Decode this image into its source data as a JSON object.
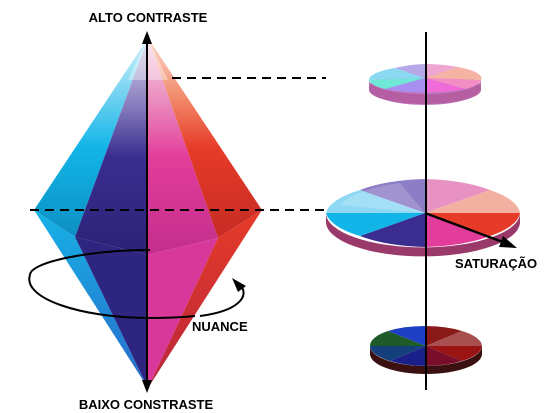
{
  "labels": {
    "top": "ALTO CONTRASTE",
    "bottom": "BAIXO CONSTRASTE",
    "hue": "NUANCE",
    "saturation": "SATURAÇÃO"
  },
  "colors": {
    "cyan": "#12b5e8",
    "indigo": "#3a2d8f",
    "magenta": "#e23d9a",
    "red": "#e63b28",
    "blue": "#1d3fc4",
    "dark_red": "#9a1414",
    "dark_green": "#1f5a2a",
    "light_cyan": "#6fe8d8",
    "pink": "#f06ad8"
  }
}
